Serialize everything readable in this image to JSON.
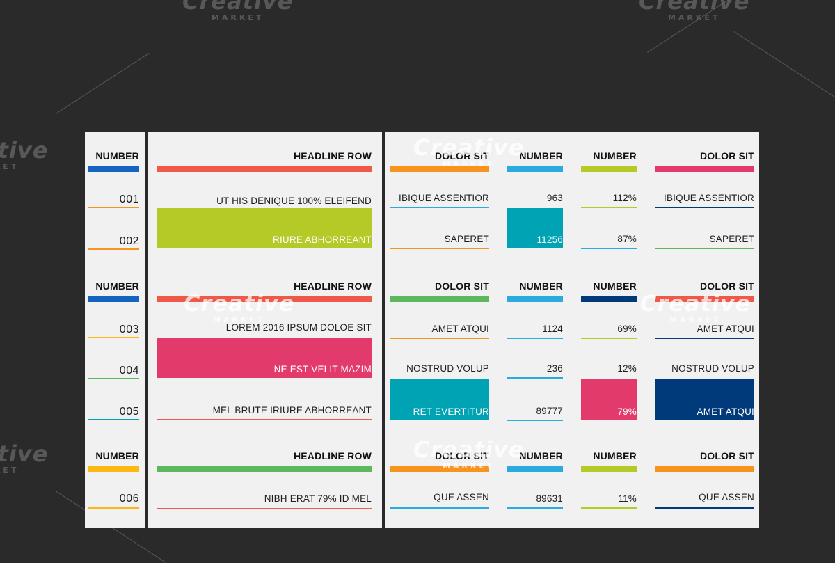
{
  "colors": {
    "background": "#2a2a2a",
    "panel": "#f1f1f1",
    "blue": "#1565c0",
    "salmon": "#f0594a",
    "orange": "#f7941d",
    "cyan": "#29abe2",
    "lime": "#b5c927",
    "magenta": "#e23b6b",
    "green": "#5cb85c",
    "teal": "#00a3b4",
    "navy": "#003a7a",
    "yellow": "#fdb813"
  },
  "watermark": {
    "word": "Creative",
    "sub": "MARKET"
  },
  "sections": [
    {
      "number_header": "NUMBER",
      "headline_header": "HEADLINE ROW",
      "headers": [
        "DOLOR SIT",
        "NUMBER",
        "NUMBER",
        "DOLOR SIT"
      ],
      "rows": [
        {
          "num": "001",
          "headline": "UT HIS DENIQUE 100% ELEIFEND",
          "c1": "IBIQUE ASSENTIOR",
          "c2": "963",
          "c3": "112%",
          "c4": "IBIQUE ASSENTIOR"
        },
        {
          "num": "002",
          "headline": "RIURE ABHORREANT",
          "c1": "SAPERET",
          "c2": "11256",
          "c3": "87%",
          "c4": "SAPERET"
        }
      ]
    },
    {
      "number_header": "NUMBER",
      "headline_header": "HEADLINE ROW",
      "headers": [
        "DOLOR SIT",
        "NUMBER",
        "NUMBER",
        "DOLOR SIT"
      ],
      "rows": [
        {
          "num": "003",
          "headline": "LOREM 2016 IPSUM DOLOE SIT",
          "c1": "AMET ATQUI",
          "c2": "1124",
          "c3": "69%",
          "c4": "AMET ATQUI"
        },
        {
          "num": "004",
          "headline": "NE EST VELIT MAZIM",
          "c1": "NOSTRUD VOLUP",
          "c2": "236",
          "c3": "12%",
          "c4": "NOSTRUD VOLUP"
        },
        {
          "num": "005",
          "headline": "MEL BRUTE IRIURE ABHORREANT",
          "c1": "RET EVERTITUR",
          "c2": "89777",
          "c3": "79%",
          "c4": "AMET ATQUI"
        }
      ]
    },
    {
      "number_header": "NUMBER",
      "headline_header": "HEADLINE ROW",
      "headers": [
        "DOLOR SIT",
        "NUMBER",
        "NUMBER",
        "DOLOR SIT"
      ],
      "rows": [
        {
          "num": "006",
          "headline": "NIBH ERAT 79% ID MEL",
          "c1": "QUE ASSEN",
          "c2": "89631",
          "c3": "11%",
          "c4": "QUE ASSEN"
        }
      ]
    }
  ]
}
